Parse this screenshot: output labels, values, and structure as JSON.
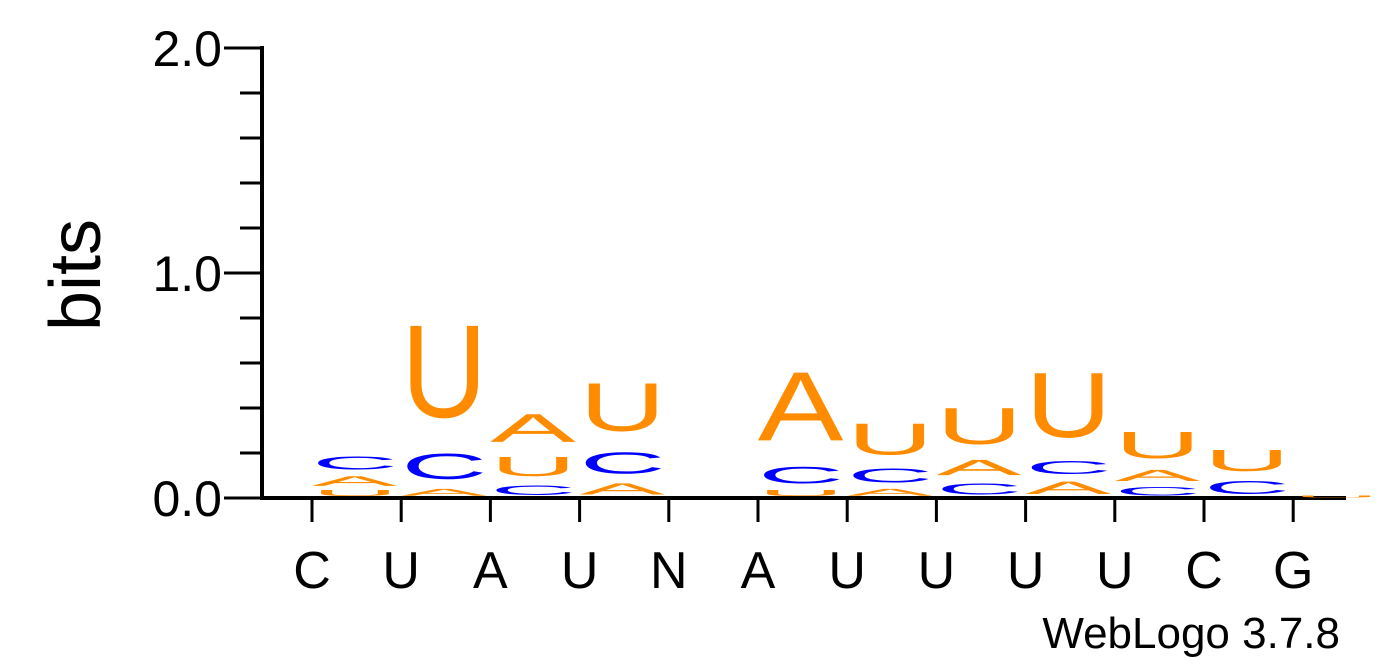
{
  "chart_data": {
    "type": "sequence-logo",
    "ylabel": "bits",
    "ylim": [
      0,
      2
    ],
    "yticks": [
      {
        "value": 0,
        "label": "0.0"
      },
      {
        "value": 1,
        "label": "1.0"
      },
      {
        "value": 2,
        "label": "2.0"
      }
    ],
    "minor_tick_step": 0.2,
    "colors": {
      "A": "#ff8c00",
      "U": "#ff8c00",
      "C": "#0000ff",
      "G": "#ff8c00"
    },
    "positions": [
      {
        "label": "C",
        "stack": [
          {
            "letter": "U",
            "height": 0.04
          },
          {
            "letter": "A",
            "height": 0.07
          },
          {
            "letter": "C",
            "height": 0.09
          }
        ]
      },
      {
        "label": "U",
        "stack": [
          {
            "letter": "A",
            "height": 0.05
          },
          {
            "letter": "C",
            "height": 0.18
          },
          {
            "letter": "U",
            "height": 0.66
          }
        ]
      },
      {
        "label": "A",
        "stack": [
          {
            "letter": "C",
            "height": 0.07
          },
          {
            "letter": "U",
            "height": 0.14
          },
          {
            "letter": "A",
            "height": 0.2
          }
        ]
      },
      {
        "label": "U",
        "stack": [
          {
            "letter": "A",
            "height": 0.08
          },
          {
            "letter": "C",
            "height": 0.15
          },
          {
            "letter": "U",
            "height": 0.34
          }
        ]
      },
      {
        "label": "N",
        "stack": []
      },
      {
        "label": "A",
        "stack": [
          {
            "letter": "U",
            "height": 0.04
          },
          {
            "letter": "C",
            "height": 0.12
          },
          {
            "letter": "A",
            "height": 0.49
          }
        ]
      },
      {
        "label": "U",
        "stack": [
          {
            "letter": "A",
            "height": 0.05
          },
          {
            "letter": "C",
            "height": 0.1
          },
          {
            "letter": "U",
            "height": 0.22
          }
        ]
      },
      {
        "label": "U",
        "stack": [
          {
            "letter": "C",
            "height": 0.08
          },
          {
            "letter": "A",
            "height": 0.11
          },
          {
            "letter": "U",
            "height": 0.26
          }
        ]
      },
      {
        "label": "U",
        "stack": [
          {
            "letter": "A",
            "height": 0.09
          },
          {
            "letter": "C",
            "height": 0.09
          },
          {
            "letter": "U",
            "height": 0.46
          }
        ]
      },
      {
        "label": "U",
        "stack": [
          {
            "letter": "C",
            "height": 0.06
          },
          {
            "letter": "A",
            "height": 0.08
          },
          {
            "letter": "U",
            "height": 0.19
          }
        ]
      },
      {
        "label": "C",
        "stack": [
          {
            "letter": "C",
            "height": 0.09
          },
          {
            "letter": "U",
            "height": 0.15
          }
        ]
      },
      {
        "label": "G",
        "stack": [
          {
            "letter": "U",
            "height": 0.015
          }
        ]
      }
    ]
  },
  "credit": "WebLogo 3.7.8"
}
